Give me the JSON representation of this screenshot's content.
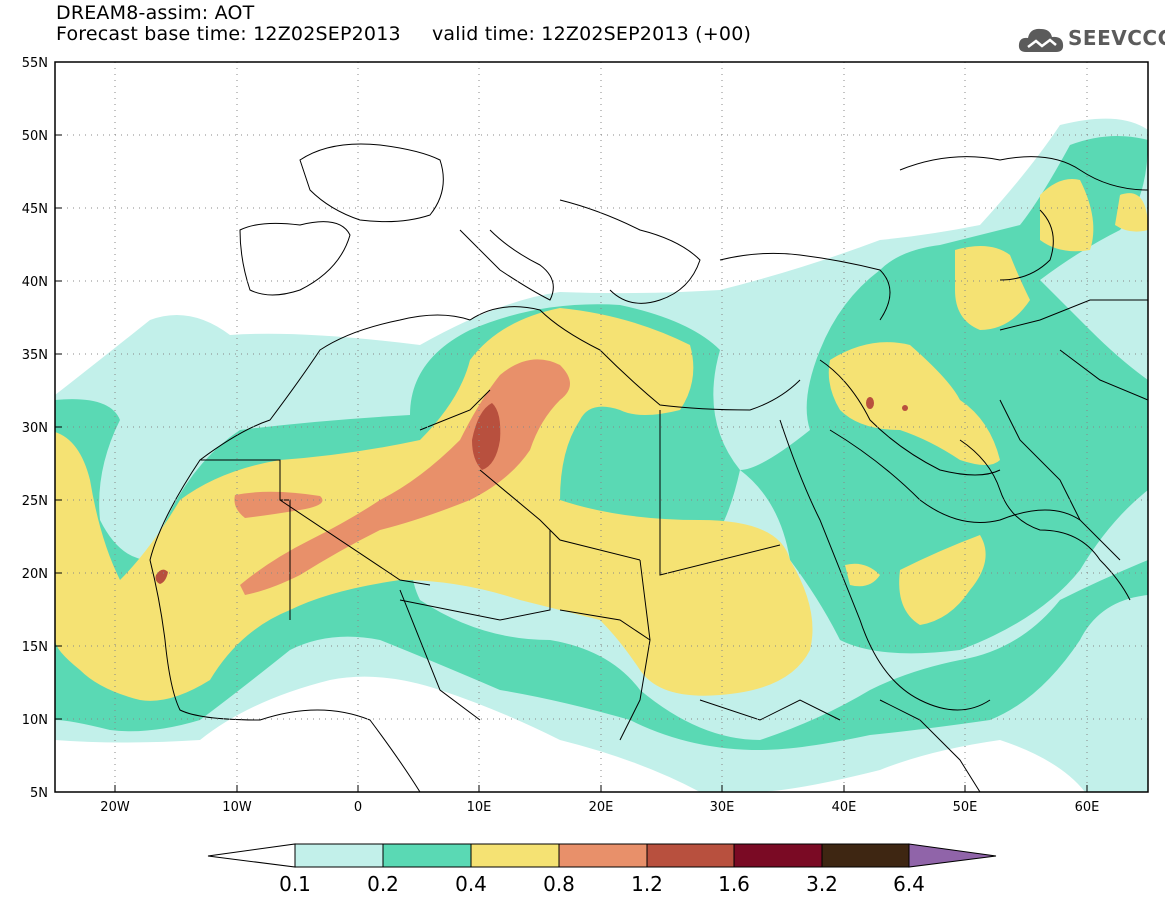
{
  "header": {
    "title_line1": "DREAM8-assim: AOT",
    "title_line2": "Forecast base time: 12Z02SEP2013     valid time: 12Z02SEP2013 (+00)",
    "logo_text": "SEEVCCC",
    "logo_icon": "cloud-icon"
  },
  "map": {
    "lat_range": [
      5,
      55
    ],
    "lon_range": [
      -25,
      65
    ],
    "lat_labels": [
      "55N",
      "50N",
      "45N",
      "40N",
      "35N",
      "30N",
      "25N",
      "20N",
      "15N",
      "10N",
      "5N"
    ],
    "lon_labels": [
      "20W",
      "10W",
      "0",
      "10E",
      "20E",
      "30E",
      "40E",
      "50E",
      "60E"
    ]
  },
  "colorbar": {
    "labels": [
      "0.1",
      "0.2",
      "0.4",
      "0.8",
      "1.2",
      "1.6",
      "3.2",
      "6.4"
    ],
    "colors": [
      "#c2f0ea",
      "#5ad9b4",
      "#f5e273",
      "#e8906a",
      "#b8503e",
      "#7a0a24",
      "#3e2612",
      "#9064a9"
    ],
    "under_color": "#ffffff"
  }
}
